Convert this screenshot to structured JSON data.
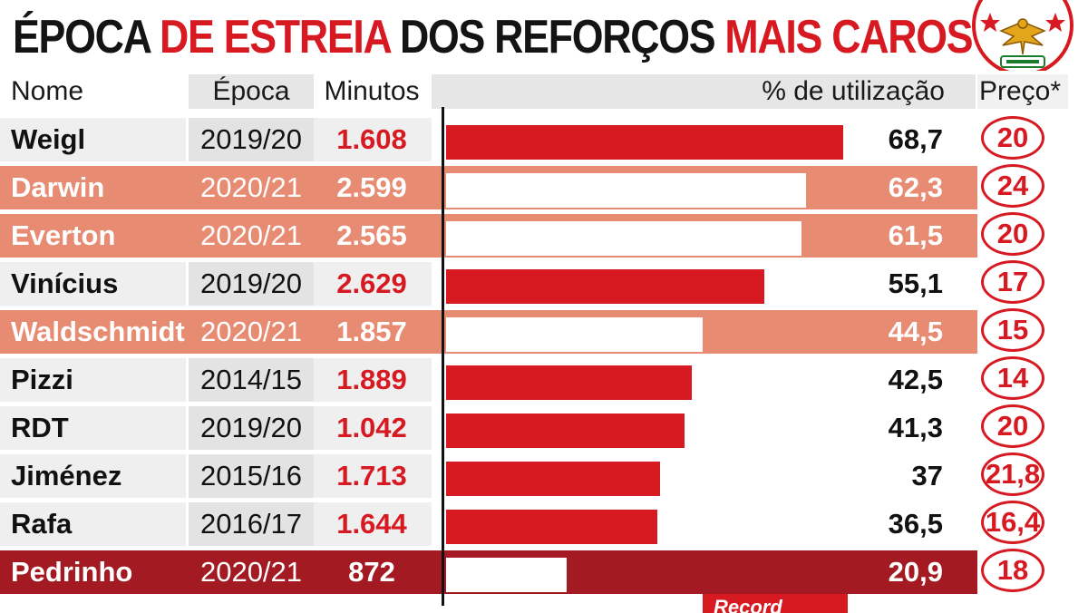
{
  "title": {
    "part1": "ÉPOCA ",
    "part2": "DE ESTREIA",
    "part3": " DOS REFORÇOS ",
    "part4": "MAIS CAROS"
  },
  "crest_name": "eagle-crest-icon",
  "brand": "Record",
  "colors": {
    "red": "#d71921",
    "salmon": "#e78c72",
    "salmon_band": "#ec9a80",
    "dark_red": "#a31a22",
    "gray_band": "#efefef",
    "white": "#ffffff",
    "black": "#111111"
  },
  "chart_data": {
    "type": "bar",
    "title": "ÉPOCA DE ESTREIA DOS REFORÇOS MAIS CAROS",
    "columns": {
      "name": "Nome",
      "season": "Época",
      "minutes": "Minutos",
      "pct": "% de utilização",
      "price": "Preço*"
    },
    "xlim": [
      0,
      100
    ],
    "rows": [
      {
        "name": "Weigl",
        "season": "2019/20",
        "minutes": "1.608",
        "pct": 68.7,
        "pct_label": "68,7",
        "price": "20",
        "style": "white"
      },
      {
        "name": "Darwin",
        "season": "2020/21",
        "minutes": "2.599",
        "pct": 62.3,
        "pct_label": "62,3",
        "price": "24",
        "style": "salmon"
      },
      {
        "name": "Everton",
        "season": "2020/21",
        "minutes": "2.565",
        "pct": 61.5,
        "pct_label": "61,5",
        "price": "20",
        "style": "salmon"
      },
      {
        "name": "Vinícius",
        "season": "2019/20",
        "minutes": "2.629",
        "pct": 55.1,
        "pct_label": "55,1",
        "price": "17",
        "style": "white"
      },
      {
        "name": "Waldschmidt",
        "season": "2020/21",
        "minutes": "1.857",
        "pct": 44.5,
        "pct_label": "44,5",
        "price": "15",
        "style": "salmon"
      },
      {
        "name": "Pizzi",
        "season": "2014/15",
        "minutes": "1.889",
        "pct": 42.5,
        "pct_label": "42,5",
        "price": "14",
        "style": "white"
      },
      {
        "name": "RDT",
        "season": "2019/20",
        "minutes": "1.042",
        "pct": 41.3,
        "pct_label": "41,3",
        "price": "20",
        "style": "white"
      },
      {
        "name": "Jiménez",
        "season": "2015/16",
        "minutes": "1.713",
        "pct": 37,
        "pct_label": "37",
        "price": "21,8",
        "style": "white"
      },
      {
        "name": "Rafa",
        "season": "2016/17",
        "minutes": "1.644",
        "pct": 36.5,
        "pct_label": "36,5",
        "price": "16,4",
        "style": "white"
      },
      {
        "name": "Pedrinho",
        "season": "2020/21",
        "minutes": "872",
        "pct": 20.9,
        "pct_label": "20,9",
        "price": "18",
        "style": "dark"
      }
    ]
  }
}
